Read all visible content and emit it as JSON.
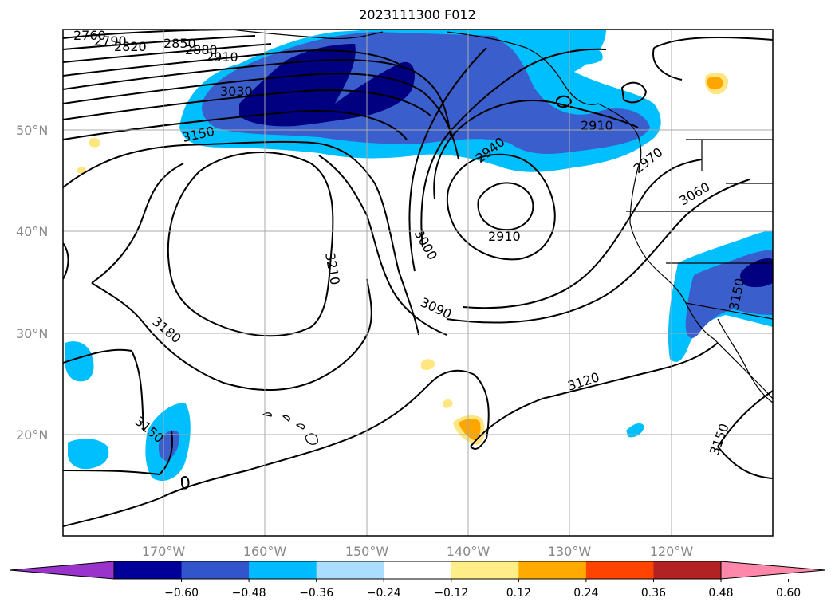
{
  "title": "2023111300 F012",
  "lat_labels": [
    "50°N",
    "40°N",
    "30°N",
    "20°N"
  ],
  "lon_labels": [
    "170°W",
    "160°W",
    "150°W",
    "140°W",
    "130°W",
    "120°W"
  ],
  "contour_labels": [
    "2760",
    "2790",
    "2820",
    "2850",
    "2880",
    "2910",
    "3030",
    "3150",
    "2940",
    "2910",
    "2910",
    "2970",
    "3060",
    "3000",
    "3210",
    "3090",
    "3180",
    "3150",
    "3120",
    "3150",
    "3150"
  ],
  "colorbar": {
    "ticks": [
      "−0.60",
      "−0.48",
      "−0.36",
      "−0.24",
      "−0.12",
      "0.12",
      "0.24",
      "0.36",
      "0.48",
      "0.60"
    ],
    "colors": [
      "#9933cc",
      "#000099",
      "#3355cc",
      "#00bbff",
      "#aaddff",
      "#ffffff",
      "#ffee88",
      "#ffaa00",
      "#ff4400",
      "#b22222",
      "#ff88aa"
    ]
  },
  "colors": {
    "dark_blue": "#000080",
    "mid_blue": "#3a5fcd",
    "light_blue": "#00bfff",
    "pale_blue": "#b0e0ff",
    "pale_yellow": "#ffe680",
    "orange": "#ffa500"
  }
}
